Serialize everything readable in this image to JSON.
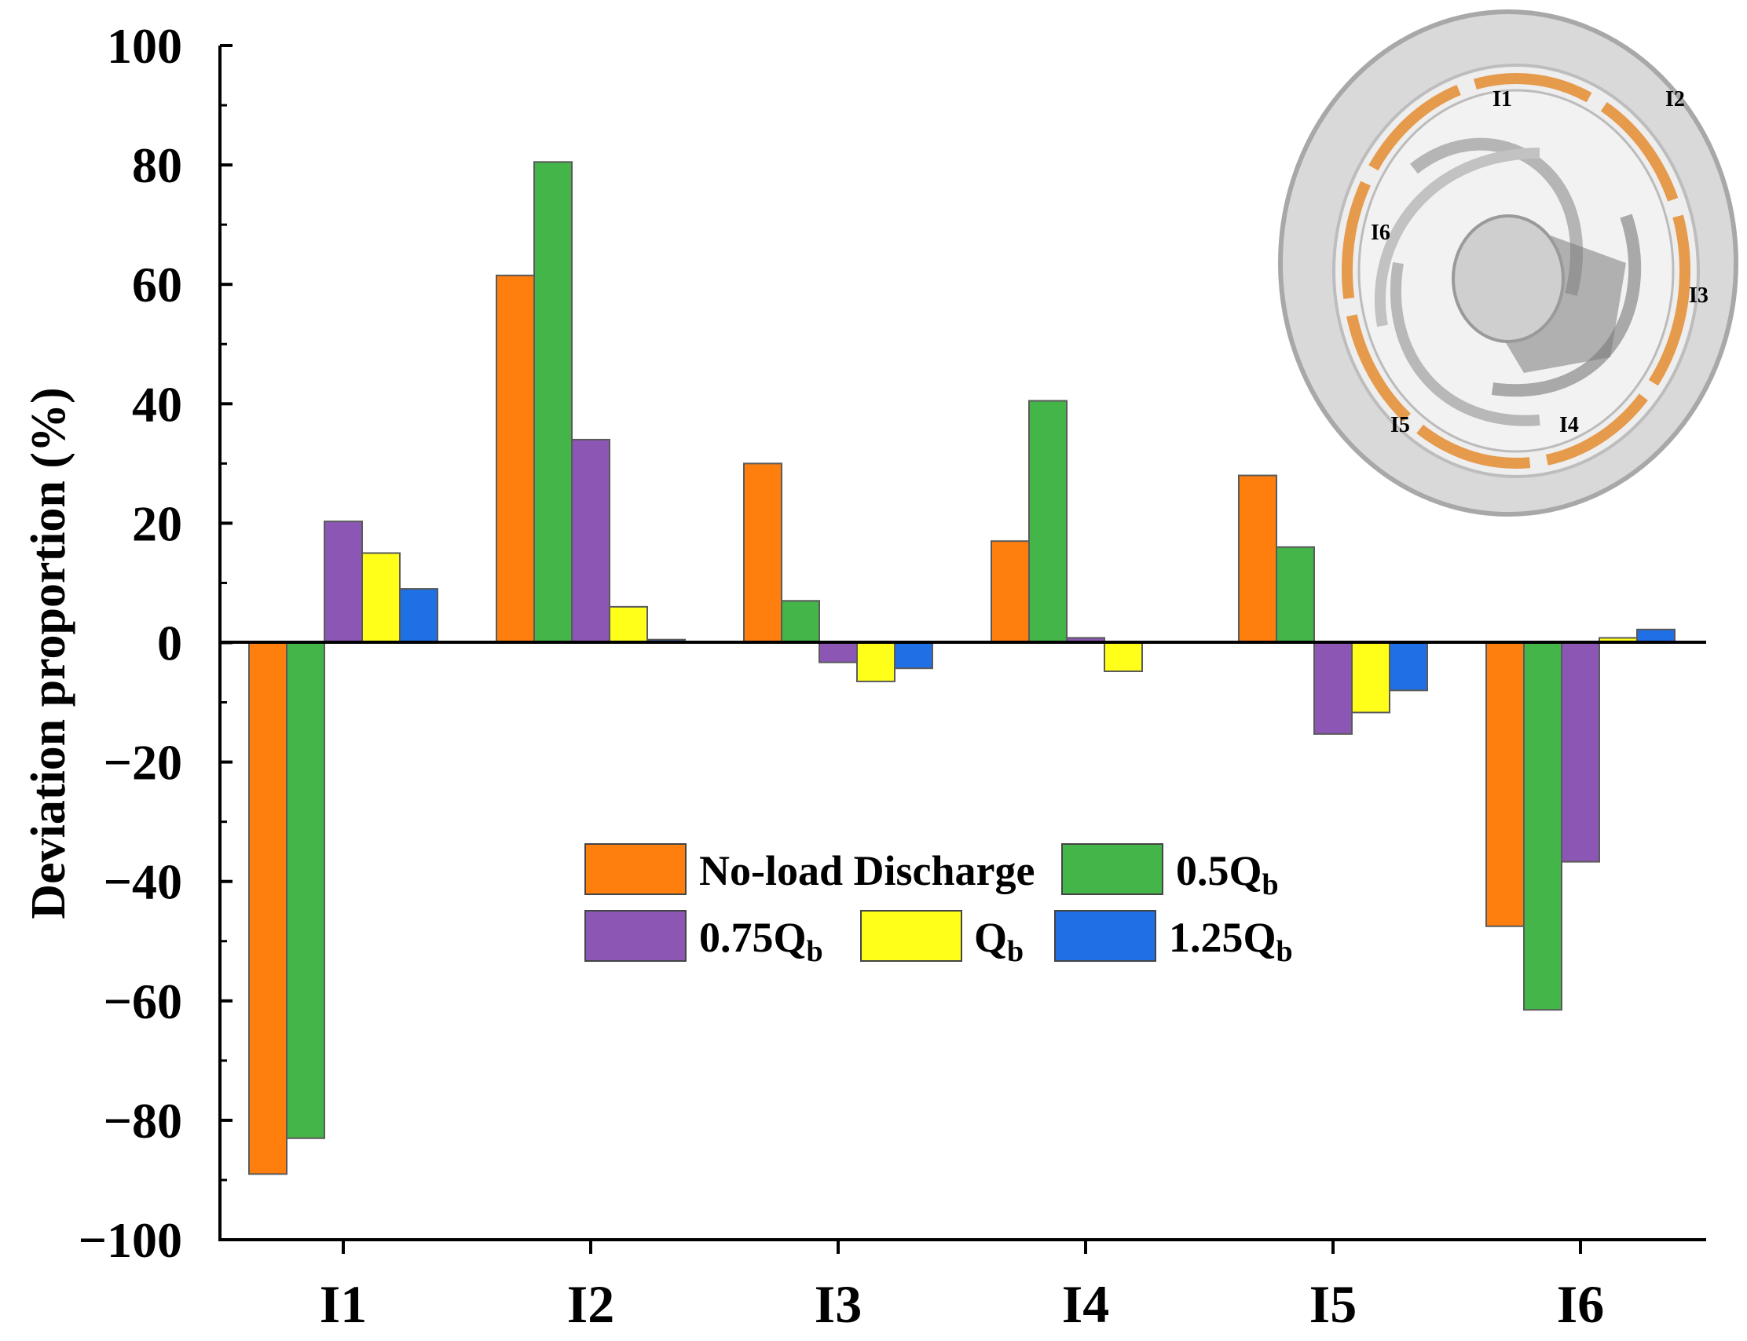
{
  "chart_data": {
    "type": "bar",
    "title": "",
    "xlabel": "",
    "ylabel": "Deviation proportion (%)",
    "ylim": [
      -100,
      100
    ],
    "yticks": [
      "100",
      "80",
      "60",
      "40",
      "20",
      "0",
      "−20",
      "−40",
      "−60",
      "−80",
      "−100"
    ],
    "categories": [
      "I1",
      "I2",
      "I3",
      "I4",
      "I5",
      "I6"
    ],
    "series": [
      {
        "name": "No-load Discharge",
        "label_main": "No-load Discharge",
        "label_sub": "",
        "color": "#ff7f0e",
        "values": [
          -89,
          61.5,
          30,
          17,
          28,
          -47.5
        ]
      },
      {
        "name": "0.5Qb",
        "label_main": "0.5Q",
        "label_sub": "b",
        "color": "#44b549",
        "values": [
          -83,
          80.5,
          7,
          40.5,
          16,
          -61.5
        ]
      },
      {
        "name": "0.75Qb",
        "label_main": "0.75Q",
        "label_sub": "b",
        "color": "#8c56b4",
        "values": [
          20.3,
          34,
          -3.3,
          0.8,
          -15.3,
          -36.7
        ]
      },
      {
        "name": "Qb",
        "label_main": "Q",
        "label_sub": "b",
        "color": "#ffff1a",
        "values": [
          15,
          6,
          -6.5,
          -4.8,
          -11.7,
          0.8
        ]
      },
      {
        "name": "1.25Qb",
        "label_main": "1.25Q",
        "label_sub": "b",
        "color": "#1f6fe5",
        "values": [
          9,
          0.5,
          -4.3,
          0,
          -8,
          2.2
        ]
      }
    ],
    "legend_position": "center",
    "inset": {
      "description_labels": [
        "I1",
        "I2",
        "I3",
        "I4",
        "I5",
        "I6"
      ]
    }
  }
}
